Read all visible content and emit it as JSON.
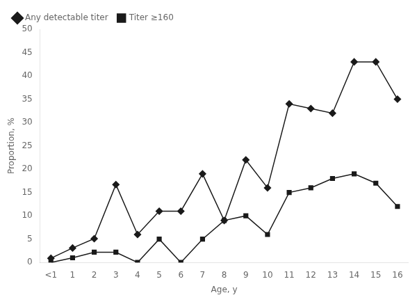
{
  "chart_data": {
    "type": "line",
    "categories": [
      "<1",
      "1",
      "2",
      "3",
      "4",
      "5",
      "6",
      "7",
      "8",
      "9",
      "10",
      "11",
      "12",
      "13",
      "14",
      "15",
      "16"
    ],
    "series": [
      {
        "name": "Any detectable titer",
        "color": "#1a1a1a",
        "marker": "diamond",
        "values": [
          0.9,
          3.1,
          5.1,
          16.7,
          6.0,
          11.0,
          11.0,
          19.0,
          9.0,
          22.0,
          16.0,
          34.0,
          33.0,
          32.0,
          43.0,
          43.0,
          35.0
        ]
      },
      {
        "name": "Titer ≥160",
        "color": "#1a1a1a",
        "marker": "square",
        "values": [
          0.0,
          1.0,
          2.2,
          2.2,
          0.0,
          5.0,
          0.0,
          5.0,
          9.0,
          10.0,
          6.0,
          15.0,
          16.0,
          18.0,
          19.0,
          17.0,
          12.0
        ]
      }
    ],
    "xlabel": "Age, y",
    "ylabel": "Proportion, %",
    "ylim": [
      0,
      50
    ],
    "yticks": [
      0,
      5,
      10,
      15,
      20,
      25,
      30,
      35,
      40,
      45,
      50
    ],
    "grid": false,
    "legend": "upper left"
  }
}
